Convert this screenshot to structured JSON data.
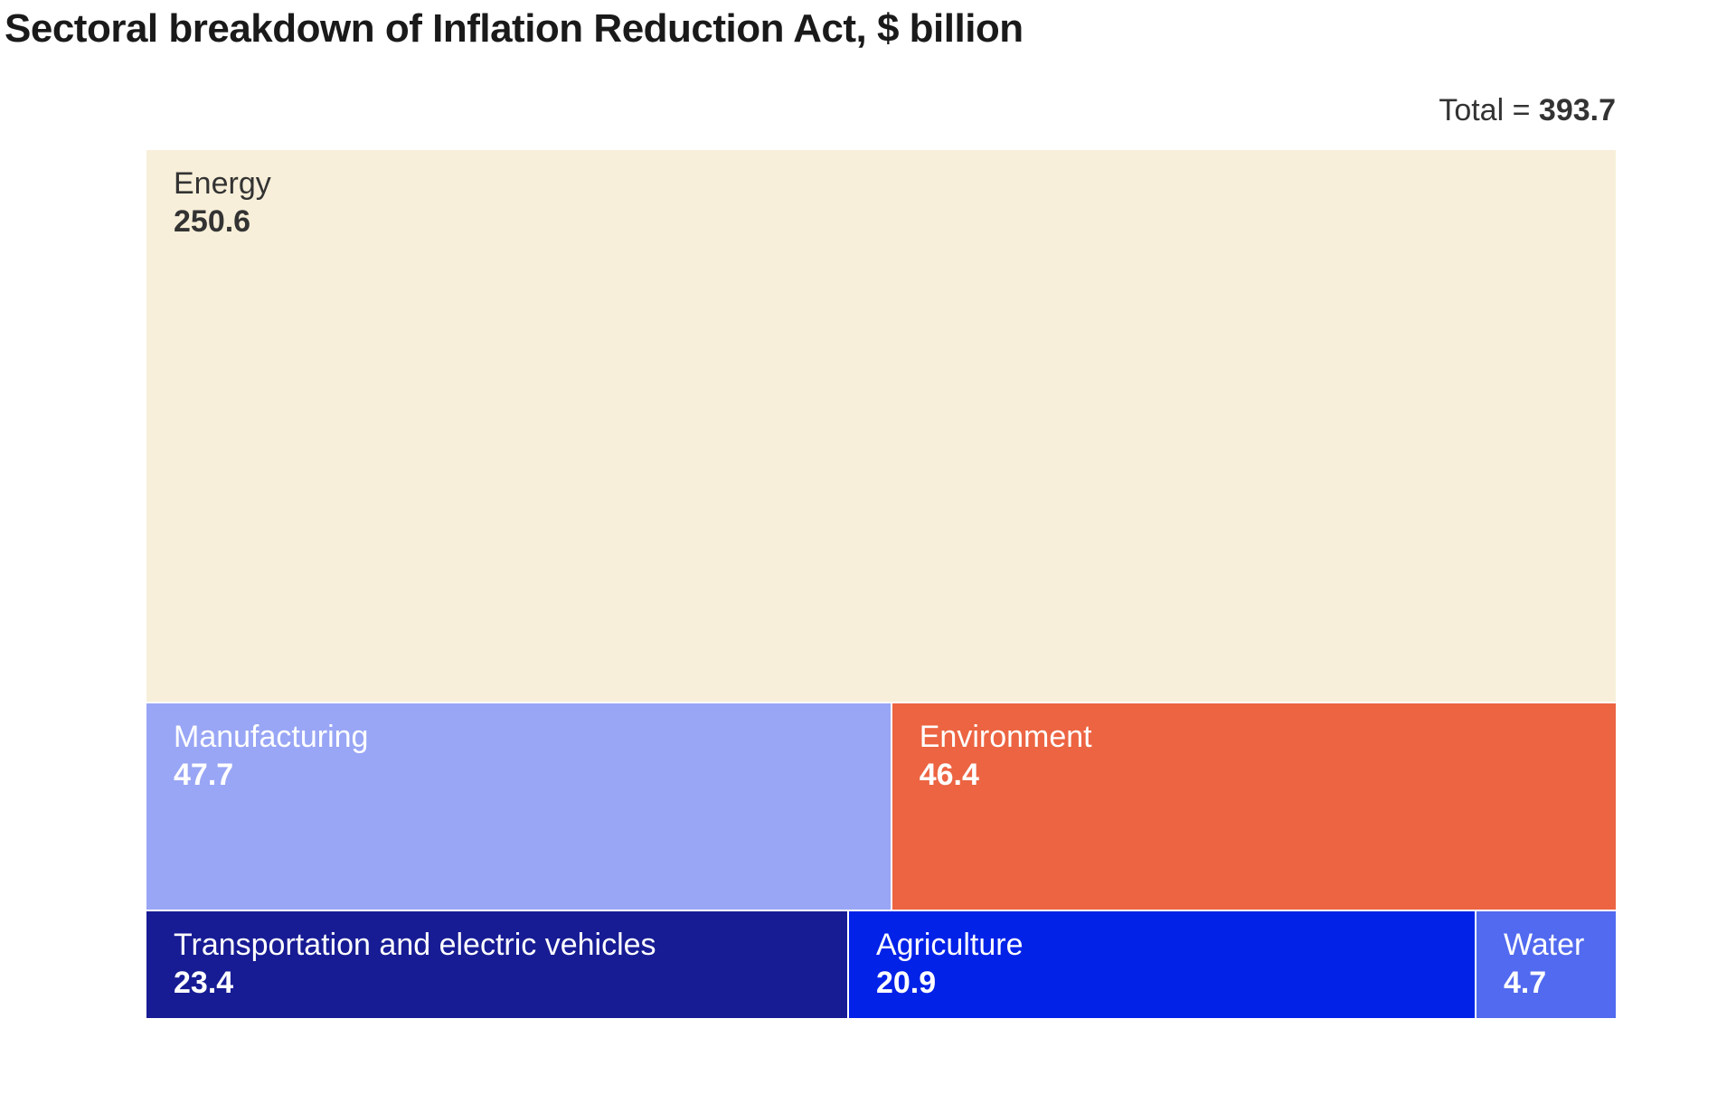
{
  "chart_data": {
    "type": "treemap",
    "title": "Sectoral breakdown of Inflation Reduction Act, $ billion",
    "total_label": "Total = ",
    "total_value": "393.7",
    "items": [
      {
        "name": "Energy",
        "value": 250.6,
        "label": "250.6",
        "color": "#F7EFD9",
        "text_color": "#333333"
      },
      {
        "name": "Manufacturing",
        "value": 47.7,
        "label": "47.7",
        "color": "#99A6F5",
        "text_color": "#ffffff"
      },
      {
        "name": "Environment",
        "value": 46.4,
        "label": "46.4",
        "color": "#EC6442",
        "text_color": "#ffffff"
      },
      {
        "name": "Transportation and electric vehicles",
        "value": 23.4,
        "label": "23.4",
        "color": "#171C94",
        "text_color": "#ffffff"
      },
      {
        "name": "Agriculture",
        "value": 20.9,
        "label": "20.9",
        "color": "#0222E8",
        "text_color": "#ffffff"
      },
      {
        "name": "Water",
        "value": 4.7,
        "label": "4.7",
        "color": "#526AEF",
        "text_color": "#ffffff"
      }
    ]
  }
}
